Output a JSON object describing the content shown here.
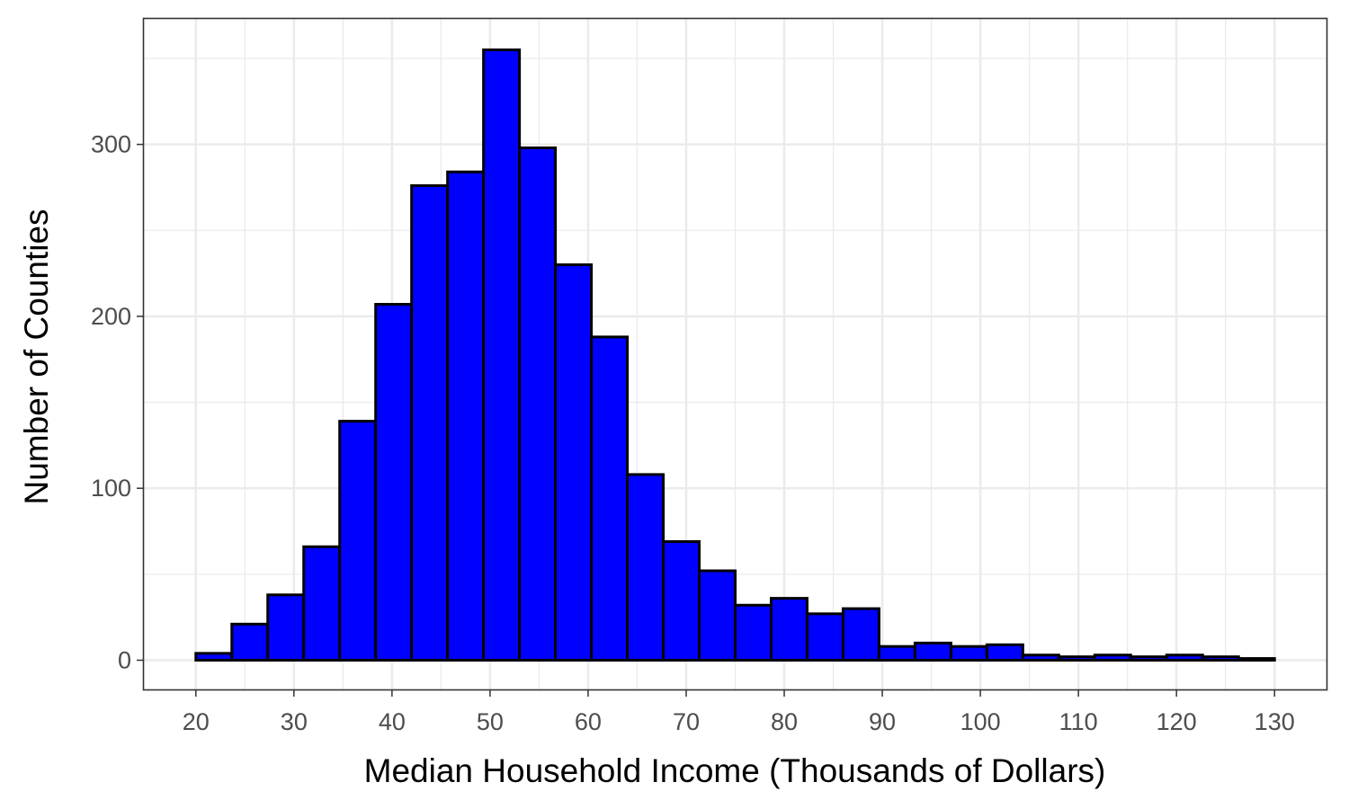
{
  "chart_data": {
    "type": "bar",
    "subtype": "histogram",
    "title": "",
    "xlabel": "Median Household Income (Thousands of Dollars)",
    "ylabel": "Number of Counties",
    "bin_width": 3.667,
    "bin_edges": [
      20,
      23.667,
      27.333,
      31,
      34.667,
      38.333,
      42,
      45.667,
      49.333,
      53,
      56.667,
      60.333,
      64,
      67.667,
      71.333,
      75,
      78.667,
      82.333,
      86,
      89.667,
      93.333,
      97,
      100.667,
      104.333,
      108,
      111.667,
      115.333,
      119,
      122.667,
      126.333,
      130
    ],
    "values": [
      4,
      21,
      38,
      66,
      139,
      207,
      276,
      284,
      355,
      298,
      230,
      188,
      108,
      69,
      52,
      32,
      36,
      27,
      30,
      8,
      10,
      8,
      9,
      3,
      2,
      3,
      2,
      3,
      2,
      1
    ],
    "xlim": [
      14.7,
      135.3
    ],
    "ylim": [
      -17,
      373
    ],
    "x_ticks": [
      20,
      30,
      40,
      50,
      60,
      70,
      80,
      90,
      100,
      110,
      120,
      130
    ],
    "x_tick_labels": [
      "20",
      "30",
      "40",
      "50",
      "60",
      "70",
      "80",
      "90",
      "100",
      "110",
      "120",
      "130"
    ],
    "y_ticks": [
      0,
      100,
      200,
      300
    ],
    "y_tick_labels": [
      "0",
      "100",
      "200",
      "300"
    ],
    "grid": true,
    "legend": "none",
    "colors": {
      "bar_fill": "#0000ff",
      "bar_outline": "#000000",
      "panel_background": "#ffffff",
      "grid": "#ebebeb",
      "border": "#333333"
    }
  }
}
